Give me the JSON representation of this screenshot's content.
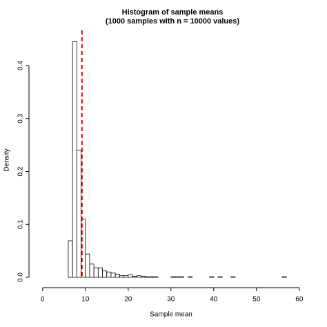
{
  "chart_data": {
    "type": "histogram",
    "title": "Histogram of sample means",
    "subtitle": "(1000 samples with n = 10000 values)",
    "xlabel": "Sample mean",
    "ylabel": "Density",
    "bins": [
      6,
      7,
      8,
      9,
      10,
      11,
      12,
      13,
      14,
      15,
      16,
      17,
      18,
      19,
      20,
      21,
      22,
      23,
      24,
      25,
      26,
      27,
      28,
      29,
      30,
      31,
      32,
      33,
      34,
      35,
      36,
      37,
      38,
      39,
      40,
      41,
      42,
      43,
      44,
      45,
      46,
      47,
      48,
      49,
      50,
      51,
      52,
      53,
      54,
      55,
      56,
      57
    ],
    "values": [
      0.069,
      0.445,
      0.24,
      0.11,
      0.044,
      0.025,
      0.018,
      0.018,
      0.012,
      0.01,
      0.008,
      0.006,
      0.003,
      0.003,
      0.005,
      0.002,
      0.003,
      0.002,
      0.001,
      0.001,
      0.001,
      0,
      0,
      0,
      0.001,
      0.001,
      0.001,
      0,
      0.001,
      0,
      0,
      0,
      0,
      0.001,
      0,
      0.001,
      0,
      0,
      0.001,
      0,
      0,
      0,
      0,
      0,
      0,
      0,
      0,
      0,
      0,
      0,
      0.001
    ],
    "color": "#ffffff",
    "edgecolor": "#000000",
    "vline": 9.2,
    "vline_color": "#dd0000",
    "xlim": [
      -3.5,
      62.6
    ],
    "ylim": [
      -0.017,
      0.46
    ],
    "xticks": [
      0,
      10,
      20,
      30,
      40,
      50,
      60
    ],
    "yticks": [
      {
        "value": 0,
        "label": "0.0"
      },
      0.1,
      0.2,
      0.3,
      0.4
    ]
  }
}
